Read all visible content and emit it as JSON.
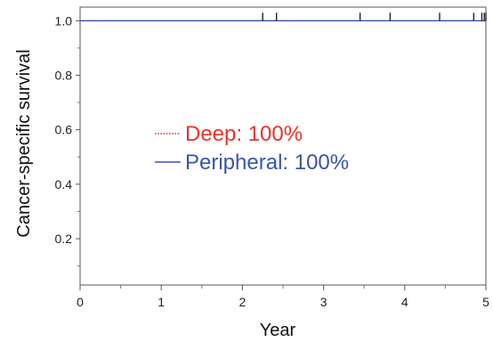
{
  "chart_data": {
    "type": "line",
    "title": "",
    "xlabel": "Year",
    "ylabel": "Cancer-specific survival",
    "xlim": [
      0,
      5
    ],
    "ylim": [
      0.03,
      1.05
    ],
    "x_ticks": [
      0,
      1,
      2,
      3,
      4,
      5
    ],
    "x_tick_labels": [
      "0",
      "1",
      "2",
      "3",
      "4",
      "5"
    ],
    "y_ticks": [
      0.2,
      0.4,
      0.6,
      0.8,
      1.0
    ],
    "y_tick_labels": [
      "0.2",
      "0.4",
      "0.6",
      "0.8",
      "1.0"
    ],
    "grid": false,
    "legend_position": "center-left",
    "series": [
      {
        "name": "Deep: 100%",
        "color": "#e8332a",
        "line_style": "dotted",
        "x": [
          0,
          5
        ],
        "y": [
          1.0,
          1.0
        ]
      },
      {
        "name": "Peripheral: 100%",
        "color": "#3a55a8",
        "line_style": "solid",
        "x": [
          0,
          5
        ],
        "y": [
          1.0,
          1.0
        ]
      }
    ],
    "censor_marks_x": [
      2.25,
      2.42,
      3.45,
      3.82,
      4.43,
      4.85,
      4.95,
      4.98,
      5.0
    ]
  }
}
